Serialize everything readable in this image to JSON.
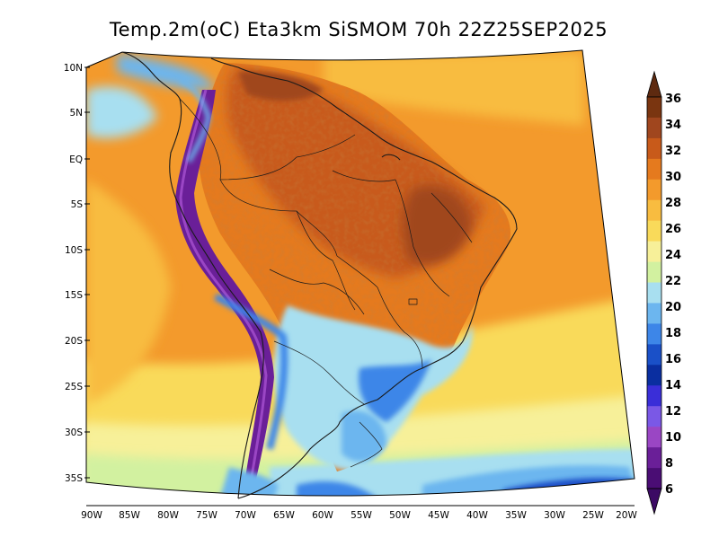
{
  "title": "Temp.2m(oC) Eta3km SiSMOM 70h 22Z25SEP2025",
  "lat_labels": [
    "10N",
    "5N",
    "EQ",
    "5S",
    "10S",
    "15S",
    "20S",
    "25S",
    "30S",
    "35S"
  ],
  "lon_labels": [
    "90W",
    "85W",
    "80W",
    "75W",
    "70W",
    "65W",
    "60W",
    "55W",
    "50W",
    "45W",
    "40W",
    "35W",
    "30W",
    "25W",
    "20W"
  ],
  "colorbar": {
    "labels": [
      "36",
      "34",
      "32",
      "30",
      "28",
      "26",
      "24",
      "22",
      "20",
      "18",
      "16",
      "14",
      "12",
      "10",
      "8",
      "6"
    ],
    "colors": [
      "#7a3510",
      "#a0461e",
      "#c85a1a",
      "#e57a1e",
      "#f39a2c",
      "#f8bc40",
      "#f9da5a",
      "#f7f099",
      "#d2f1a0",
      "#a8dff0",
      "#6cb6ef",
      "#3d86e8",
      "#1a50c8",
      "#0a2ea0",
      "#3a2ed8",
      "#7a58e6",
      "#9a46c4",
      "#6a1f98",
      "#4a0d74"
    ],
    "top_arrow_color": "#5e2a10",
    "bottom_arrow_color": "#3c0a64"
  },
  "palette": {
    "ocean_warm": "#f39a2c",
    "ocean_cool": "#f9da5a",
    "southern_ocean": "#a8dff0",
    "andes": "#6a1f98",
    "hot": "#c85a1a"
  }
}
